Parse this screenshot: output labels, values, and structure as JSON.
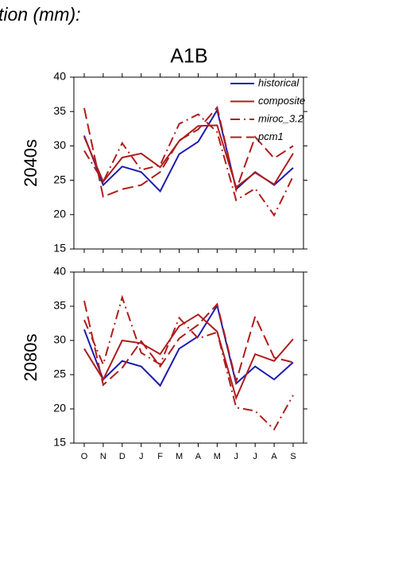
{
  "caption": "tion (mm):",
  "chart_data": [
    {
      "type": "line",
      "title": "A1B",
      "ylabel": "2040s",
      "ylim": [
        15,
        40
      ],
      "yticks": [
        15,
        20,
        25,
        30,
        35,
        40
      ],
      "legend": "upper right",
      "series": [
        {
          "name": "historical",
          "color": "#1c1cb0",
          "style": "solid",
          "values": [
            31.5,
            24.3,
            27,
            26.2,
            23.4,
            28.8,
            30.6,
            35.2,
            23.7,
            26.2,
            24.3,
            26.8
          ]
        },
        {
          "name": "composite",
          "color": "#b01c1c",
          "style": "solid",
          "values": [
            31.3,
            24.8,
            28.3,
            28.9,
            26.9,
            30.7,
            32.9,
            33,
            24,
            26.1,
            24.4,
            28.9
          ]
        },
        {
          "name": "miroc_3.2",
          "color": "#b01c1c",
          "style": "dashdot",
          "values": [
            29.3,
            24.8,
            30.4,
            26.5,
            27.2,
            33.2,
            34.6,
            32,
            22.1,
            23.8,
            19.9,
            25.6
          ]
        },
        {
          "name": "pcm1",
          "color": "#b01c1c",
          "style": "dashed",
          "values": [
            35.5,
            22.6,
            23.7,
            24.3,
            26.2,
            30.8,
            32.4,
            35.6,
            23.6,
            31.3,
            28.2,
            30
          ]
        }
      ]
    },
    {
      "type": "line",
      "ylabel": "2080s",
      "categories": [
        "O",
        "N",
        "D",
        "J",
        "F",
        "M",
        "A",
        "M",
        "J",
        "J",
        "A",
        "S"
      ],
      "ylim": [
        15,
        40
      ],
      "yticks": [
        15,
        20,
        25,
        30,
        35,
        40
      ],
      "series": [
        {
          "color": "#1c1cb0",
          "style": "solid",
          "values": [
            31.6,
            24.3,
            27,
            26.2,
            23.4,
            28.8,
            30.6,
            35.1,
            23.7,
            26.2,
            24.3,
            26.8
          ]
        },
        {
          "color": "#b01c1c",
          "style": "solid",
          "values": [
            28.8,
            24.3,
            30,
            29.6,
            28,
            32.1,
            33.8,
            31.3,
            21.6,
            28,
            27,
            30.2
          ]
        },
        {
          "color": "#b01c1c",
          "style": "dashdot",
          "values": [
            33,
            26.5,
            36.3,
            28.2,
            26.5,
            33.3,
            30.3,
            31.2,
            20.2,
            19.7,
            17,
            22
          ]
        },
        {
          "color": "#b01c1c",
          "style": "dashed",
          "values": [
            35.8,
            23.5,
            26,
            29.9,
            26.2,
            30.3,
            32.3,
            35.3,
            24,
            33.5,
            27.5,
            26.8
          ]
        }
      ]
    }
  ]
}
